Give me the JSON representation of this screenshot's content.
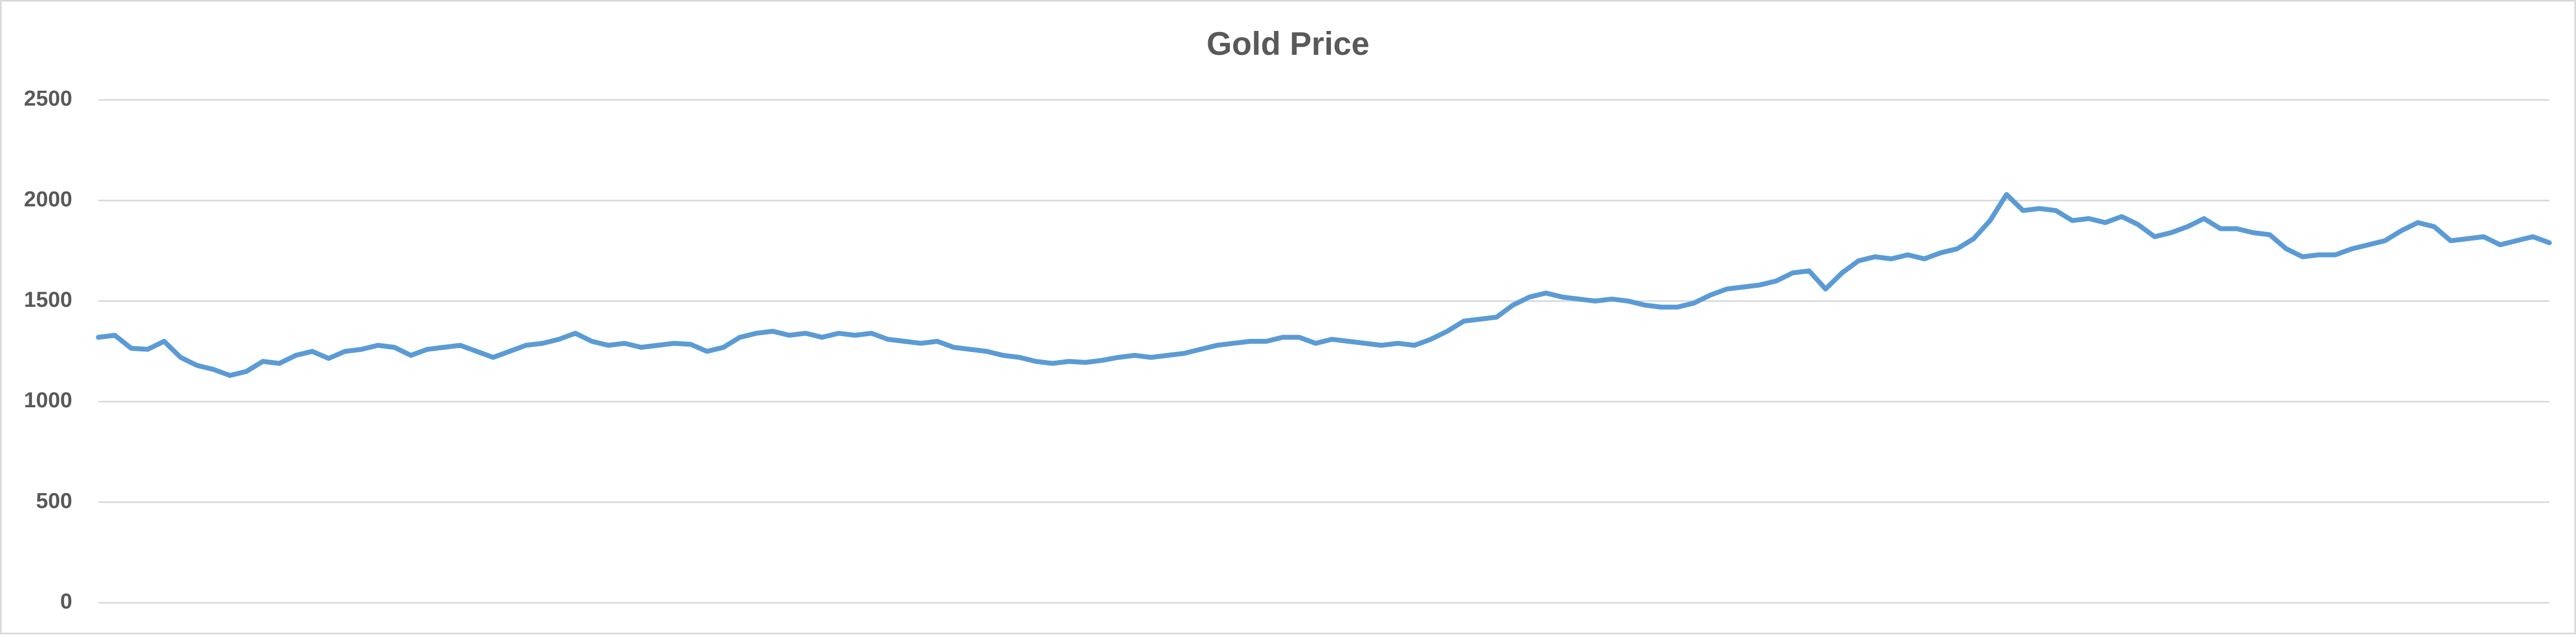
{
  "chart_data": {
    "type": "line",
    "title": "Gold Price",
    "color": "#5b9bd5",
    "grid": true,
    "ylim": [
      0,
      2500
    ],
    "yticks": [
      0,
      500,
      1000,
      1500,
      2000,
      2500
    ],
    "values": [
      1320,
      1330,
      1265,
      1260,
      1300,
      1220,
      1180,
      1160,
      1130,
      1150,
      1200,
      1190,
      1230,
      1250,
      1215,
      1250,
      1260,
      1280,
      1270,
      1230,
      1260,
      1270,
      1280,
      1250,
      1220,
      1250,
      1280,
      1290,
      1310,
      1340,
      1300,
      1280,
      1290,
      1270,
      1280,
      1290,
      1285,
      1250,
      1270,
      1320,
      1340,
      1350,
      1330,
      1340,
      1320,
      1340,
      1330,
      1340,
      1310,
      1300,
      1290,
      1300,
      1270,
      1260,
      1250,
      1230,
      1220,
      1200,
      1190,
      1200,
      1195,
      1205,
      1220,
      1230,
      1220,
      1230,
      1240,
      1260,
      1280,
      1290,
      1300,
      1300,
      1320,
      1320,
      1290,
      1310,
      1300,
      1290,
      1280,
      1290,
      1280,
      1310,
      1350,
      1400,
      1410,
      1420,
      1480,
      1520,
      1540,
      1520,
      1510,
      1500,
      1510,
      1500,
      1480,
      1470,
      1470,
      1490,
      1530,
      1560,
      1570,
      1580,
      1600,
      1640,
      1650,
      1560,
      1640,
      1700,
      1720,
      1710,
      1730,
      1710,
      1740,
      1760,
      1810,
      1900,
      2030,
      1950,
      1960,
      1950,
      1900,
      1910,
      1890,
      1920,
      1880,
      1820,
      1840,
      1870,
      1910,
      1860,
      1860,
      1840,
      1830,
      1760,
      1720,
      1730,
      1730,
      1760,
      1780,
      1800,
      1850,
      1890,
      1870,
      1800,
      1810,
      1820,
      1780,
      1800,
      1820,
      1790
    ]
  }
}
